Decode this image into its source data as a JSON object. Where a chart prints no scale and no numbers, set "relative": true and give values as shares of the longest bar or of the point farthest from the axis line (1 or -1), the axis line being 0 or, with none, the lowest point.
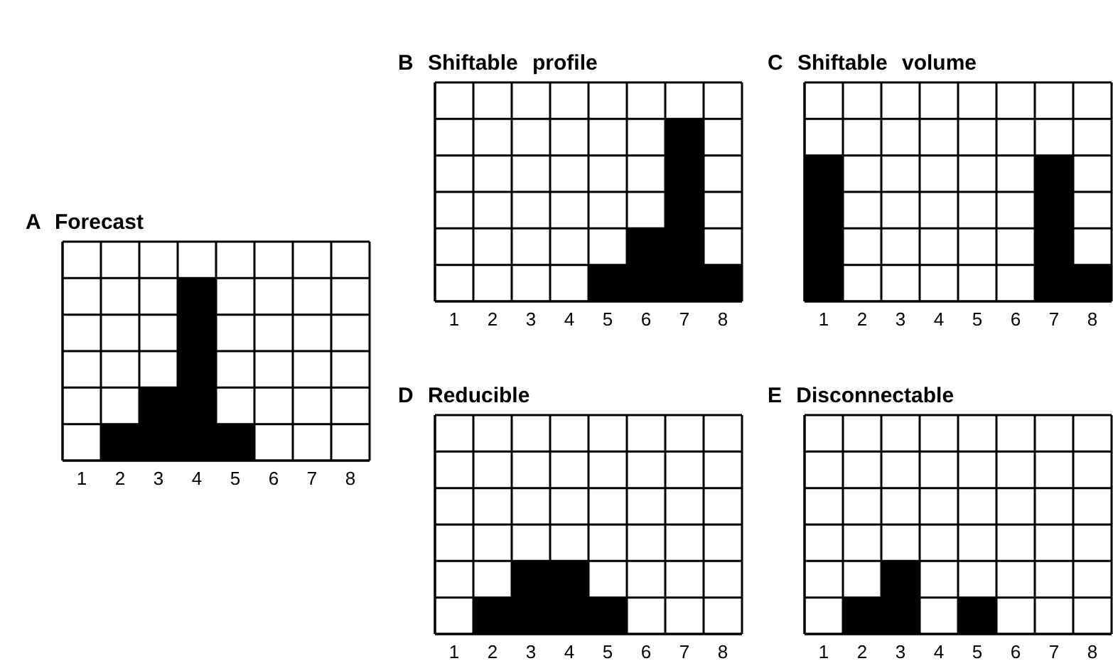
{
  "chart_data": [
    {
      "type": "bar",
      "title": "A Forecast",
      "categories": [
        "1",
        "2",
        "3",
        "4",
        "5",
        "6",
        "7",
        "8"
      ],
      "values": [
        0,
        0.2,
        0.4,
        1,
        0.2,
        0,
        0,
        0
      ],
      "color": "#000000",
      "relative": true,
      "grid": true
    },
    {
      "type": "bar",
      "title": "B Shiftable profile",
      "categories": [
        "1",
        "2",
        "3",
        "4",
        "5",
        "6",
        "7",
        "8"
      ],
      "values": [
        0,
        0,
        0,
        0,
        0.2,
        0.4,
        1,
        0.2
      ],
      "color": "#000000",
      "relative": true,
      "grid": true
    },
    {
      "type": "bar",
      "title": "C Shiftable volume",
      "categories": [
        "1",
        "2",
        "3",
        "4",
        "5",
        "6",
        "7",
        "8"
      ],
      "values": [
        1,
        0,
        0,
        0,
        0,
        0,
        1,
        0.25
      ],
      "color": "#000000",
      "relative": true,
      "grid": true
    },
    {
      "type": "bar",
      "title": "D Reducible",
      "categories": [
        "1",
        "2",
        "3",
        "4",
        "5",
        "6",
        "7",
        "8"
      ],
      "values": [
        0,
        0.5,
        1,
        1,
        0.5,
        0,
        0,
        0
      ],
      "color": "#000000",
      "relative": true,
      "grid": true
    },
    {
      "type": "bar",
      "title": "E Disconnectable",
      "categories": [
        "1",
        "2",
        "3",
        "4",
        "5",
        "6",
        "7",
        "8"
      ],
      "values": [
        0,
        0.5,
        1,
        0,
        0.5,
        0,
        0,
        0
      ],
      "color": "#000000",
      "relative": true,
      "grid": true
    }
  ]
}
